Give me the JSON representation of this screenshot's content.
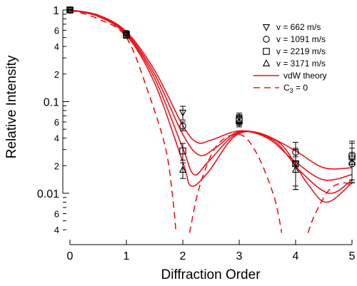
{
  "chart_data": {
    "type": "scatter",
    "xlabel": "Diffraction Order",
    "ylabel": "Relative Intensity",
    "x_ticks": [
      "0",
      "1",
      "2",
      "3",
      "4",
      "5"
    ],
    "y_scale": "log",
    "y_major_labels": [
      "1",
      "0.1",
      "0.01"
    ],
    "y_minor_labels": [
      "6",
      "4",
      "2",
      "6",
      "4",
      "2",
      "6",
      "4"
    ],
    "xlim": [
      -0.05,
      5.05
    ],
    "ylim": [
      0.0037,
      1.06
    ],
    "series": [
      {
        "name": "v = 662 m/s",
        "marker": "triangle-down",
        "points": [
          {
            "x": 0,
            "y": 1.0,
            "err": 0.02
          },
          {
            "x": 1,
            "y": 0.555,
            "err": 0.03
          },
          {
            "x": 2,
            "y": 0.076,
            "err": 0.013
          },
          {
            "x": 3,
            "y": 0.067,
            "err": 0.008
          },
          {
            "x": 4,
            "y": 0.021,
            "err": 0.01
          },
          {
            "x": 5,
            "y": 0.024,
            "err": 0.011
          }
        ]
      },
      {
        "name": "v = 1091 m/s",
        "marker": "circle",
        "points": [
          {
            "x": 0,
            "y": 1.0,
            "err": 0.02
          },
          {
            "x": 1,
            "y": 0.555,
            "err": 0.03
          },
          {
            "x": 2,
            "y": 0.054,
            "err": 0.006
          },
          {
            "x": 3,
            "y": 0.064,
            "err": 0.008
          },
          {
            "x": 4,
            "y": 0.028,
            "err": 0.008
          },
          {
            "x": 5,
            "y": 0.021,
            "err": 0.007
          }
        ]
      },
      {
        "name": "v = 2219 m/s",
        "marker": "square",
        "points": [
          {
            "x": 0,
            "y": 1.0,
            "err": 0.02
          },
          {
            "x": 1,
            "y": 0.53,
            "err": 0.03
          },
          {
            "x": 2,
            "y": 0.029,
            "err": 0.006
          },
          {
            "x": 3,
            "y": 0.063,
            "err": 0.008
          },
          {
            "x": 4,
            "y": 0.021,
            "err": 0.009
          },
          {
            "x": 5,
            "y": 0.025,
            "err": 0.012
          }
        ]
      },
      {
        "name": "v = 3171 m/s",
        "marker": "triangle-up",
        "points": [
          {
            "x": 0,
            "y": 1.0,
            "err": 0.02
          },
          {
            "x": 1,
            "y": 0.55,
            "err": 0.03
          },
          {
            "x": 2,
            "y": 0.018,
            "err": 0.0035
          },
          {
            "x": 3,
            "y": 0.061,
            "err": 0.008
          },
          {
            "x": 4,
            "y": 0.018,
            "err": 0.007
          },
          {
            "x": 5,
            "y": 0.022,
            "err": 0.009
          }
        ]
      }
    ],
    "theory_curves": [
      {
        "name": "vdW theory",
        "style": "solid",
        "points": [
          [
            0,
            1
          ],
          [
            0.5,
            0.88
          ],
          [
            1,
            0.58
          ],
          [
            1.5,
            0.22
          ],
          [
            2,
            0.055
          ],
          [
            2.25,
            0.036
          ],
          [
            2.5,
            0.038
          ],
          [
            3,
            0.048
          ],
          [
            3.5,
            0.042
          ],
          [
            4,
            0.029
          ],
          [
            4.5,
            0.019
          ],
          [
            5,
            0.019
          ]
        ]
      },
      {
        "style": "solid",
        "points": [
          [
            0,
            1
          ],
          [
            0.5,
            0.87
          ],
          [
            1,
            0.56
          ],
          [
            1.5,
            0.2
          ],
          [
            2,
            0.044
          ],
          [
            2.3,
            0.026
          ],
          [
            2.6,
            0.032
          ],
          [
            3,
            0.047
          ],
          [
            3.5,
            0.04
          ],
          [
            4,
            0.022
          ],
          [
            4.5,
            0.014
          ],
          [
            5,
            0.016
          ]
        ]
      },
      {
        "style": "solid",
        "points": [
          [
            0,
            1
          ],
          [
            0.5,
            0.86
          ],
          [
            1,
            0.54
          ],
          [
            1.5,
            0.18
          ],
          [
            2,
            0.031
          ],
          [
            2.2,
            0.016
          ],
          [
            2.45,
            0.022
          ],
          [
            3,
            0.046
          ],
          [
            3.6,
            0.038
          ],
          [
            4.1,
            0.017
          ],
          [
            4.6,
            0.01
          ],
          [
            5,
            0.014
          ]
        ]
      },
      {
        "style": "solid",
        "points": [
          [
            0,
            1
          ],
          [
            0.5,
            0.85
          ],
          [
            1,
            0.53
          ],
          [
            1.5,
            0.16
          ],
          [
            2,
            0.022
          ],
          [
            2.15,
            0.012
          ],
          [
            2.45,
            0.017
          ],
          [
            3,
            0.045
          ],
          [
            3.7,
            0.036
          ],
          [
            4.2,
            0.013
          ],
          [
            4.55,
            0.008
          ],
          [
            5,
            0.013
          ]
        ]
      },
      {
        "name": "C3 = 0",
        "style": "dashed",
        "points": [
          [
            0,
            1
          ],
          [
            0.5,
            0.8
          ],
          [
            1,
            0.5
          ],
          [
            1.4,
            0.12
          ],
          [
            1.7,
            0.03
          ],
          [
            1.83,
            0.008
          ],
          [
            1.88,
            0.0037
          ]
        ]
      },
      {
        "style": "dashed",
        "points": [
          [
            2.12,
            0.0037
          ],
          [
            2.3,
            0.012
          ],
          [
            2.6,
            0.033
          ],
          [
            3,
            0.044
          ],
          [
            3.3,
            0.028
          ],
          [
            3.6,
            0.01
          ],
          [
            3.73,
            0.0045
          ],
          [
            3.75,
            0.0037
          ]
        ]
      },
      {
        "style": "dashed",
        "points": [
          [
            4.22,
            0.0037
          ],
          [
            4.35,
            0.006
          ],
          [
            4.6,
            0.011
          ],
          [
            4.85,
            0.013
          ],
          [
            5,
            0.012
          ]
        ]
      }
    ],
    "legend": {
      "position": "top-right",
      "entries": [
        {
          "marker": "triangle-down",
          "label": "v = 662 m/s"
        },
        {
          "marker": "circle",
          "label": "v = 1091 m/s"
        },
        {
          "marker": "square",
          "label": "v = 2219 m/s"
        },
        {
          "marker": "triangle-up",
          "label": "v = 3171 m/s"
        },
        {
          "line": "solid",
          "label": "vdW theory"
        },
        {
          "line": "dashed",
          "label_main": "C",
          "label_sub": "3",
          "label_rest": " = 0"
        }
      ]
    },
    "colors": {
      "theory": "#e8141c",
      "markers": "#000000"
    },
    "grid": false
  }
}
